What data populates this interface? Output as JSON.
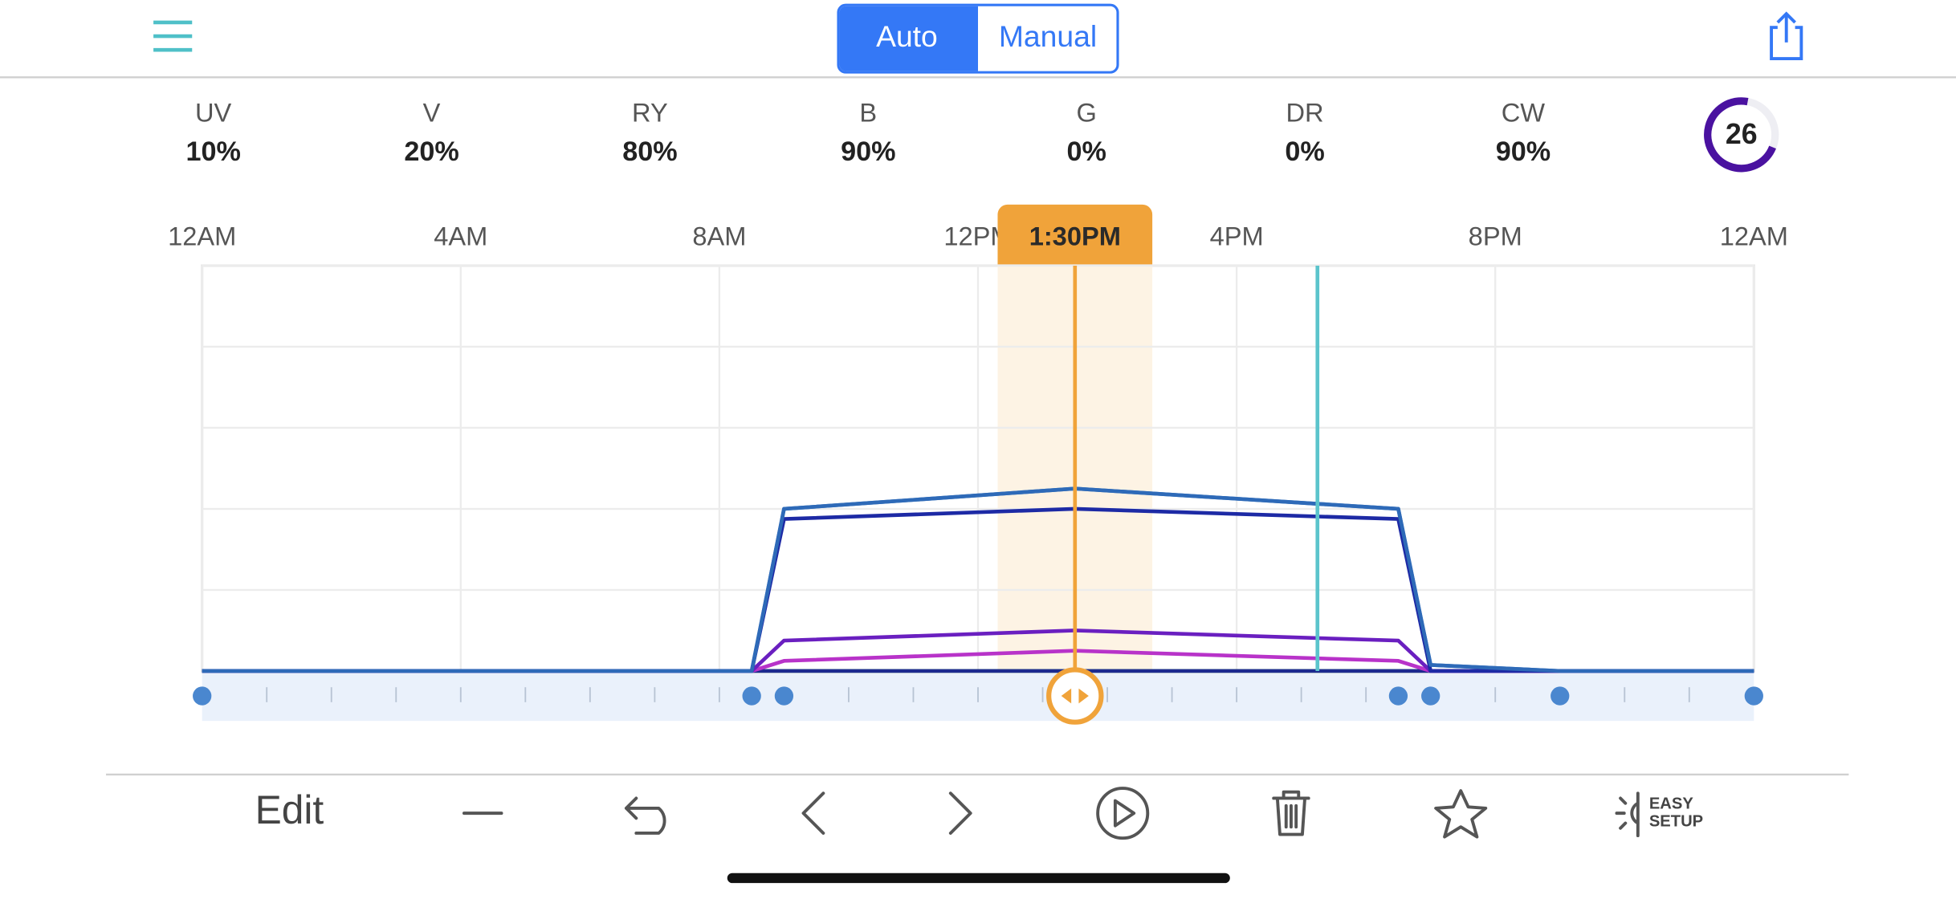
{
  "header": {
    "modes": [
      "Auto",
      "Manual"
    ]
  },
  "channels": [
    {
      "name": "UV",
      "value": "10%"
    },
    {
      "name": "V",
      "value": "20%"
    },
    {
      "name": "RY",
      "value": "80%"
    },
    {
      "name": "B",
      "value": "90%"
    },
    {
      "name": "G",
      "value": "0%"
    },
    {
      "name": "DR",
      "value": "0%"
    },
    {
      "name": "CW",
      "value": "90%"
    }
  ],
  "intensity": "26",
  "chart_data": {
    "type": "line",
    "x": [
      0,
      8.5,
      9,
      13.5,
      18.5,
      19,
      21,
      24
    ],
    "xlim": [
      0,
      24
    ],
    "xticks": [
      {
        "value": 0,
        "label": "12AM"
      },
      {
        "value": 4,
        "label": "4AM"
      },
      {
        "value": 8,
        "label": "8AM"
      },
      {
        "value": 12,
        "label": "12PM"
      },
      {
        "value": 16,
        "label": "4PM"
      },
      {
        "value": 20,
        "label": "8PM"
      },
      {
        "value": 24,
        "label": "12AM"
      }
    ],
    "ylim": [
      0,
      200
    ],
    "yticks": [
      0,
      40,
      80,
      120,
      160,
      200
    ],
    "grid": true,
    "selected_time": {
      "value": 13.5,
      "label": "1:30PM"
    },
    "current_time": 17.25,
    "series": [
      {
        "name": "G",
        "color": "#5cb85c",
        "values": [
          0,
          0,
          0,
          0,
          0,
          0,
          0,
          0
        ]
      },
      {
        "name": "DR",
        "color": "#1d2a8f",
        "values": [
          0,
          0,
          0,
          0,
          0,
          0,
          0,
          0
        ]
      },
      {
        "name": "UV",
        "color": "#b833c9",
        "values": [
          0,
          0,
          5,
          10,
          5,
          0,
          0,
          0
        ]
      },
      {
        "name": "V",
        "color": "#6a1fc0",
        "values": [
          0,
          0,
          15,
          20,
          15,
          0,
          0,
          0
        ]
      },
      {
        "name": "CW",
        "color": "#3c7fc4",
        "values": [
          0,
          0,
          80,
          90,
          80,
          3,
          0,
          0
        ]
      },
      {
        "name": "RY",
        "color": "#1d2aa5",
        "values": [
          0,
          0,
          75,
          80,
          75,
          0,
          0,
          0
        ]
      },
      {
        "name": "B",
        "color": "#2e6ab8",
        "values": [
          0,
          0,
          80,
          90,
          80,
          3,
          0,
          0
        ]
      }
    ]
  },
  "toolbar": {
    "edit": "Edit",
    "easy_setup": [
      "EASY",
      "SETUP"
    ]
  }
}
